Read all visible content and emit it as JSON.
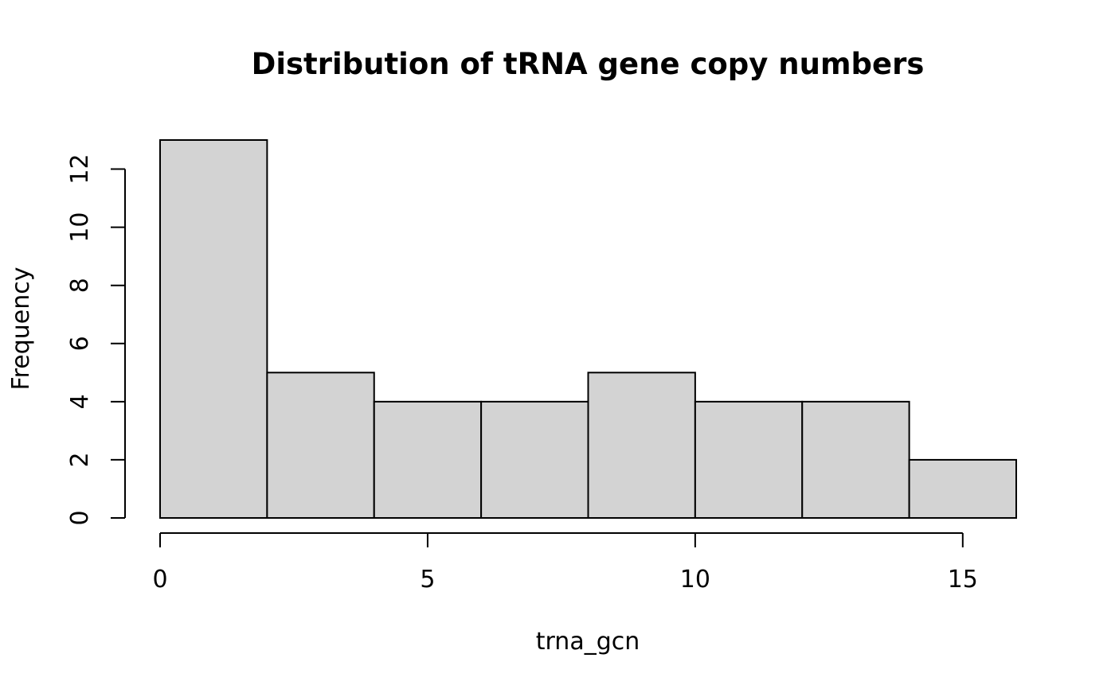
{
  "chart_data": {
    "type": "bar",
    "title": "Distribution of tRNA gene copy numbers",
    "xlabel": "trna_gcn",
    "ylabel": "Frequency",
    "bins": [
      {
        "start": 0,
        "end": 2,
        "count": 13
      },
      {
        "start": 2,
        "end": 4,
        "count": 5
      },
      {
        "start": 4,
        "end": 6,
        "count": 4
      },
      {
        "start": 6,
        "end": 8,
        "count": 4
      },
      {
        "start": 8,
        "end": 10,
        "count": 5
      },
      {
        "start": 10,
        "end": 12,
        "count": 4
      },
      {
        "start": 12,
        "end": 14,
        "count": 4
      },
      {
        "start": 14,
        "end": 16,
        "count": 2
      }
    ],
    "xticks": [
      0,
      5,
      10,
      15
    ],
    "yticks": [
      0,
      2,
      4,
      6,
      8,
      10,
      12
    ],
    "xlim": [
      0,
      16
    ],
    "ylim": [
      0,
      13
    ],
    "grid": false,
    "colors": {
      "bar_fill": "#d3d3d3",
      "bar_stroke": "#000000"
    }
  }
}
